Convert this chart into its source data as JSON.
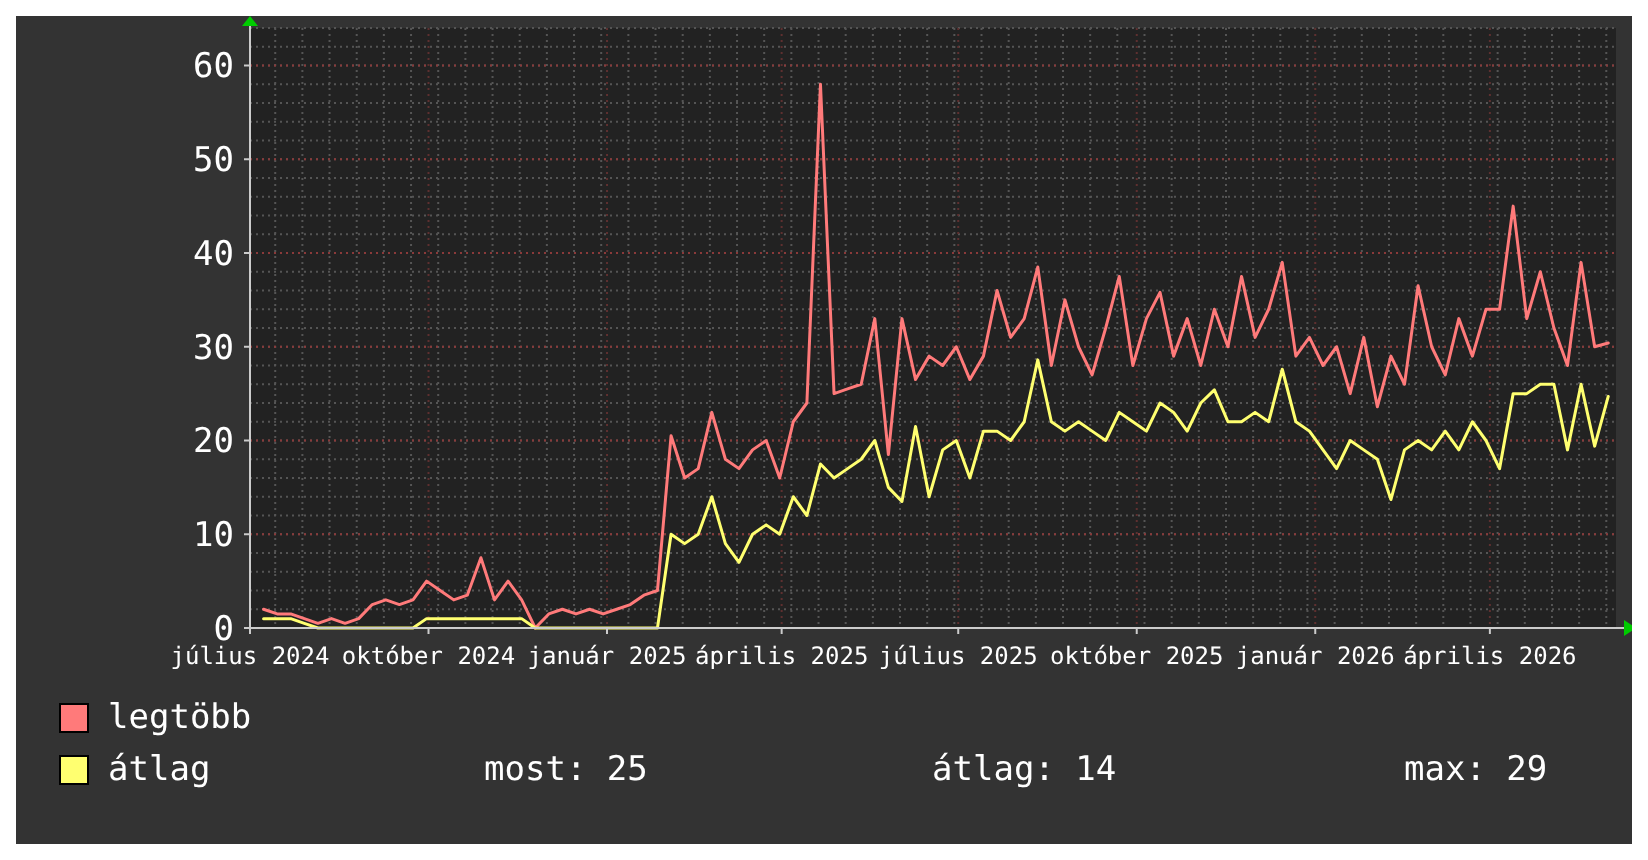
{
  "chart_data": {
    "type": "line",
    "x": [
      "2024-07-08",
      "2024-07-15",
      "2024-07-22",
      "2024-07-29",
      "2024-08-05",
      "2024-08-12",
      "2024-08-19",
      "2024-08-26",
      "2024-09-02",
      "2024-09-09",
      "2024-09-16",
      "2024-09-23",
      "2024-09-30",
      "2024-10-07",
      "2024-10-14",
      "2024-10-21",
      "2024-10-28",
      "2024-11-04",
      "2024-11-11",
      "2024-11-18",
      "2024-11-25",
      "2024-12-02",
      "2024-12-09",
      "2024-12-16",
      "2024-12-23",
      "2024-12-30",
      "2025-01-06",
      "2025-01-13",
      "2025-01-20",
      "2025-01-27",
      "2025-02-03",
      "2025-02-10",
      "2025-02-17",
      "2025-02-24",
      "2025-03-03",
      "2025-03-10",
      "2025-03-17",
      "2025-03-24",
      "2025-03-31",
      "2025-04-07",
      "2025-04-14",
      "2025-04-21",
      "2025-04-28",
      "2025-05-05",
      "2025-05-12",
      "2025-05-19",
      "2025-05-26",
      "2025-06-02",
      "2025-06-09",
      "2025-06-16",
      "2025-06-23",
      "2025-06-30",
      "2025-07-07",
      "2025-07-14",
      "2025-07-21",
      "2025-07-28",
      "2025-08-04",
      "2025-08-11",
      "2025-08-18",
      "2025-08-25",
      "2025-09-01",
      "2025-09-08",
      "2025-09-15",
      "2025-09-22",
      "2025-09-29",
      "2025-10-06",
      "2025-10-13",
      "2025-10-20",
      "2025-10-27",
      "2025-11-03",
      "2025-11-10",
      "2025-11-17",
      "2025-11-24",
      "2025-12-01",
      "2025-12-08",
      "2025-12-15",
      "2025-12-22",
      "2025-12-29",
      "2026-01-05",
      "2026-01-12",
      "2026-01-19",
      "2026-01-26",
      "2026-02-02",
      "2026-02-09",
      "2026-02-16",
      "2026-02-23",
      "2026-03-02",
      "2026-03-09",
      "2026-03-16",
      "2026-03-23",
      "2026-03-30",
      "2026-04-06",
      "2026-04-13",
      "2026-04-20",
      "2026-04-27",
      "2026-05-04",
      "2026-05-11",
      "2026-05-18",
      "2026-05-25",
      "2026-06-01"
    ],
    "series": [
      {
        "name": "legtöbb",
        "color": "#ff7a7a",
        "values": [
          2,
          1.5,
          1.5,
          1,
          0.5,
          1,
          0.5,
          1,
          2.5,
          3,
          2.5,
          3,
          5,
          4,
          3,
          3.5,
          7.5,
          3,
          5,
          3,
          0,
          1.5,
          2,
          1.5,
          2,
          1.5,
          2,
          2.5,
          3.5,
          4,
          20.5,
          16,
          17,
          23,
          18,
          17,
          19,
          20,
          16,
          22,
          24,
          58,
          25,
          25.5,
          26,
          33,
          18.5,
          33,
          26.5,
          29,
          28,
          30,
          26.5,
          29,
          36,
          31,
          33,
          38.5,
          28,
          35,
          30,
          27,
          32,
          37.5,
          28,
          33,
          35.8,
          29,
          33,
          28,
          34,
          30,
          37.5,
          31,
          34,
          39,
          29,
          31,
          28,
          30,
          25,
          31,
          23.6,
          29,
          26,
          36.5,
          30,
          27,
          33,
          29,
          34,
          34,
          45,
          33,
          38,
          32,
          28,
          39,
          30,
          30.4
        ]
      },
      {
        "name": "átlag",
        "color": "#ffff70",
        "values": [
          1,
          1,
          1,
          0.5,
          0,
          0,
          0,
          0,
          0,
          0,
          0,
          0,
          1,
          1,
          1,
          1,
          1,
          1,
          1,
          1,
          0,
          0,
          0,
          0,
          0,
          0,
          0,
          0,
          0,
          0,
          10,
          9,
          10,
          14,
          9,
          7,
          10,
          11,
          10,
          14,
          12,
          17.5,
          16,
          17,
          18,
          20,
          15,
          13.5,
          21.5,
          14,
          19,
          20,
          16,
          21,
          21,
          20,
          22,
          28.6,
          22,
          21,
          22,
          21,
          20,
          23,
          22,
          21,
          24,
          23,
          21,
          24,
          25.4,
          22,
          22,
          23,
          22,
          27.6,
          22,
          21,
          19,
          17,
          20,
          19,
          18,
          13.7,
          19,
          20,
          19,
          21,
          19,
          22,
          20,
          17,
          25,
          25,
          26,
          26,
          19,
          26,
          19.4,
          24.7
        ]
      }
    ],
    "xlim": [
      "2024-07-01",
      "2026-06-05"
    ],
    "xticks": [
      {
        "value": "2024-07-01",
        "label": "július 2024"
      },
      {
        "value": "2024-10-01",
        "label": "október 2024"
      },
      {
        "value": "2025-01-01",
        "label": "január 2025"
      },
      {
        "value": "2025-04-01",
        "label": "április 2025"
      },
      {
        "value": "2025-07-01",
        "label": "július 2025"
      },
      {
        "value": "2025-10-01",
        "label": "október 2025"
      },
      {
        "value": "2026-01-01",
        "label": "január 2026"
      },
      {
        "value": "2026-04-01",
        "label": "április 2026"
      }
    ],
    "ylim": [
      0,
      64
    ],
    "yticks": [
      0,
      10,
      20,
      30,
      40,
      50,
      60
    ],
    "grid": true,
    "legend": "bottom left",
    "line_style": "solid",
    "marker": "none",
    "annotations": [
      "most: 25",
      "átlag: 14",
      "max: 29"
    ]
  }
}
